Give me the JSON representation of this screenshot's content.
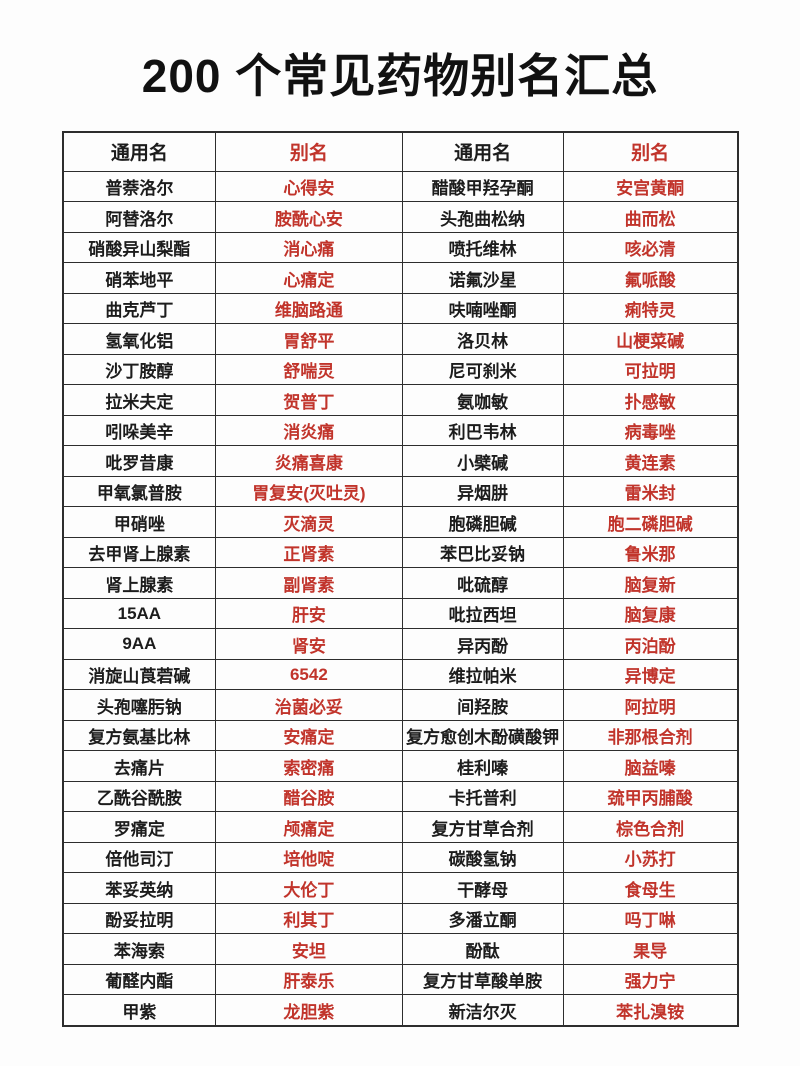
{
  "page": {
    "title": "200 个常见药物别名汇总"
  },
  "colors": {
    "alias_text": "#c1342b",
    "border": "#2d2d2d",
    "text": "#1c1c1c",
    "background": "#fdfdfd"
  },
  "table": {
    "headers": [
      "通用名",
      "别名",
      "通用名",
      "别名"
    ],
    "rows": [
      [
        "普萘洛尔",
        "心得安",
        "醋酸甲羟孕酮",
        "安宫黄酮"
      ],
      [
        "阿替洛尔",
        "胺酰心安",
        "头孢曲松纳",
        "曲而松"
      ],
      [
        "硝酸异山梨酯",
        "消心痛",
        "喷托维林",
        "咳必清"
      ],
      [
        "硝苯地平",
        "心痛定",
        "诺氟沙星",
        "氟哌酸"
      ],
      [
        "曲克芦丁",
        "维脑路通",
        "呋喃唑酮",
        "痢特灵"
      ],
      [
        "氢氧化铝",
        "胃舒平",
        "洛贝林",
        "山梗菜碱"
      ],
      [
        "沙丁胺醇",
        "舒喘灵",
        "尼可刹米",
        "可拉明"
      ],
      [
        "拉米夫定",
        "贺普丁",
        "氨咖敏",
        "扑感敏"
      ],
      [
        "吲哚美辛",
        "消炎痛",
        "利巴韦林",
        "病毒唑"
      ],
      [
        "吡罗昔康",
        "炎痛喜康",
        "小檗碱",
        "黄连素"
      ],
      [
        "甲氧氯普胺",
        "胃复安(灭吐灵)",
        "异烟肼",
        "雷米封"
      ],
      [
        "甲硝唑",
        "灭滴灵",
        "胞磷胆碱",
        "胞二磷胆碱"
      ],
      [
        "去甲肾上腺素",
        "正肾素",
        "苯巴比妥钠",
        "鲁米那"
      ],
      [
        "肾上腺素",
        "副肾素",
        "吡硫醇",
        "脑复新"
      ],
      [
        "15AA",
        "肝安",
        "吡拉西坦",
        "脑复康"
      ],
      [
        "9AA",
        "肾安",
        "异丙酚",
        "丙泊酚"
      ],
      [
        "消旋山莨菪碱",
        "6542",
        "维拉帕米",
        "异博定"
      ],
      [
        "头孢噻肟钠",
        "治菌必妥",
        "间羟胺",
        "阿拉明"
      ],
      [
        "复方氨基比林",
        "安痛定",
        "复方愈创木酚磺酸钾",
        "非那根合剂"
      ],
      [
        "去痛片",
        "索密痛",
        "桂利嗪",
        "脑益嗪"
      ],
      [
        "乙酰谷酰胺",
        "醋谷胺",
        "卡托普利",
        "巯甲丙脯酸"
      ],
      [
        "罗痛定",
        "颅痛定",
        "复方甘草合剂",
        "棕色合剂"
      ],
      [
        "倍他司汀",
        "培他啶",
        "碳酸氢钠",
        "小苏打"
      ],
      [
        "苯妥英纳",
        "大伦丁",
        "干酵母",
        "食母生"
      ],
      [
        "酚妥拉明",
        "利其丁",
        "多潘立酮",
        "吗丁啉"
      ],
      [
        "苯海索",
        "安坦",
        "酚酞",
        "果导"
      ],
      [
        "葡醛内酯",
        "肝泰乐",
        "复方甘草酸单胺",
        "强力宁"
      ],
      [
        "甲紫",
        "龙胆紫",
        "新洁尔灭",
        "苯扎溴铵"
      ]
    ]
  }
}
